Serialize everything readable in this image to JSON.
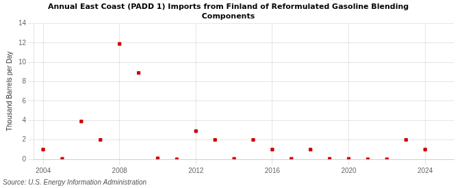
{
  "chart_data": {
    "type": "scatter",
    "title": "Annual East Coast (PADD 1) Imports from Finland of Reformulated Gasoline Blending\nComponents",
    "ylabel": "Thousand Barrels per Day",
    "source": "Source: U.S. Energy Information Administration",
    "x": [
      2004,
      2005,
      2006,
      2007,
      2008,
      2009,
      2010,
      2011,
      2012,
      2013,
      2014,
      2015,
      2016,
      2017,
      2018,
      2019,
      2020,
      2021,
      2022,
      2023,
      2024
    ],
    "values": [
      1.0,
      0.05,
      3.9,
      2.0,
      11.9,
      8.9,
      0.1,
      0.0,
      2.9,
      2.0,
      0.05,
      2.0,
      1.0,
      0.05,
      1.0,
      0.05,
      0.05,
      0.0,
      0.0,
      2.0,
      1.0
    ],
    "color": "#cc0000",
    "marker": "square",
    "xlim": [
      2003.5,
      2025.5
    ],
    "xticks": [
      2004,
      2008,
      2012,
      2016,
      2020,
      2024
    ],
    "ylim": [
      0,
      14
    ],
    "yticks": [
      0,
      2,
      4,
      6,
      8,
      10,
      12,
      14
    ],
    "grid": true
  }
}
